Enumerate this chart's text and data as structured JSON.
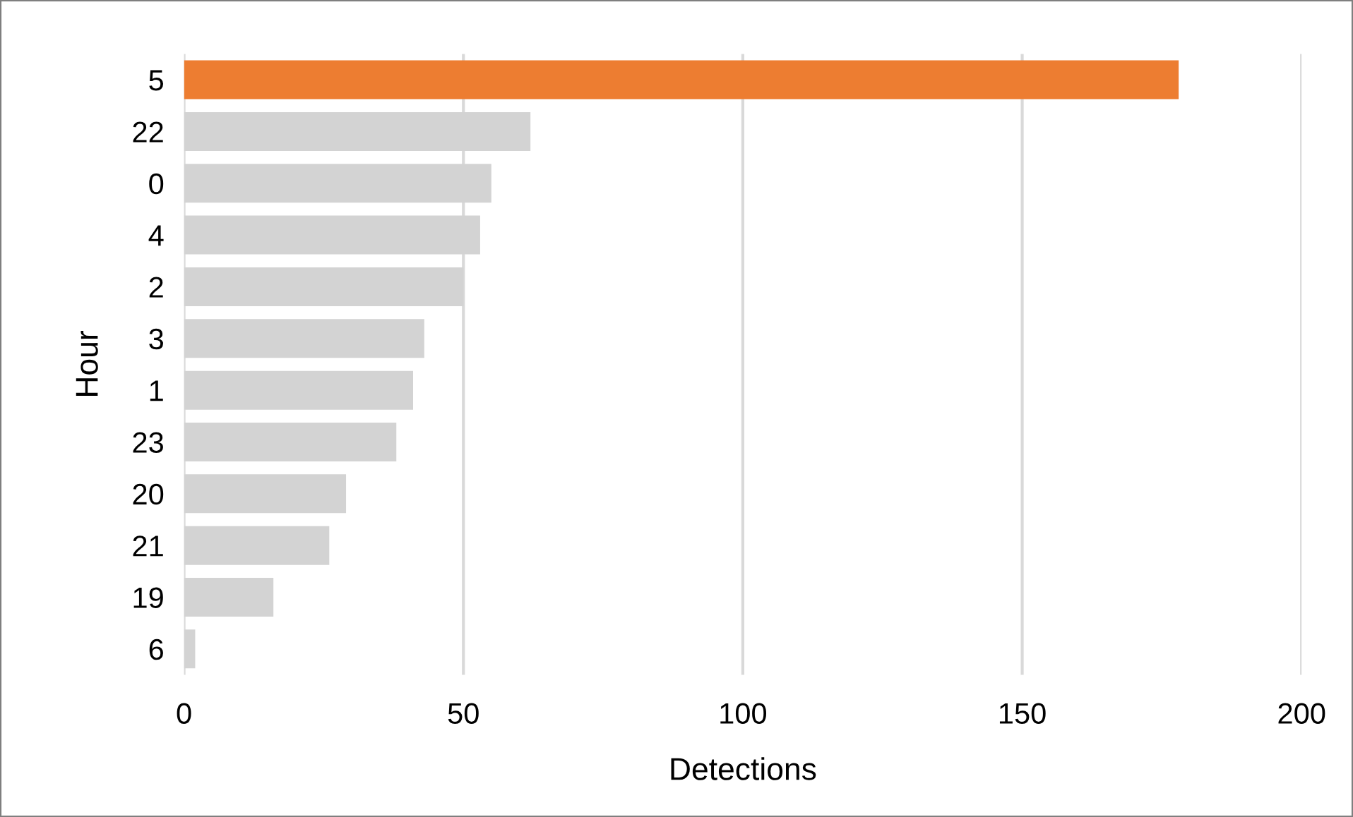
{
  "chart_data": {
    "type": "bar",
    "orientation": "horizontal",
    "xlabel": "Detections",
    "ylabel": "Hour",
    "categories": [
      "5",
      "22",
      "0",
      "4",
      "2",
      "3",
      "1",
      "23",
      "20",
      "21",
      "19",
      "6"
    ],
    "values": [
      178,
      62,
      55,
      53,
      50,
      43,
      41,
      38,
      29,
      26,
      16,
      2
    ],
    "colors": [
      "#ed7d31",
      "#d3d3d3",
      "#d3d3d3",
      "#d3d3d3",
      "#d3d3d3",
      "#d3d3d3",
      "#d3d3d3",
      "#d3d3d3",
      "#d3d3d3",
      "#d3d3d3",
      "#d3d3d3",
      "#d3d3d3"
    ],
    "xlim": [
      0,
      200
    ],
    "xticks": [
      0,
      50,
      100,
      150,
      200
    ],
    "grid": "x"
  }
}
